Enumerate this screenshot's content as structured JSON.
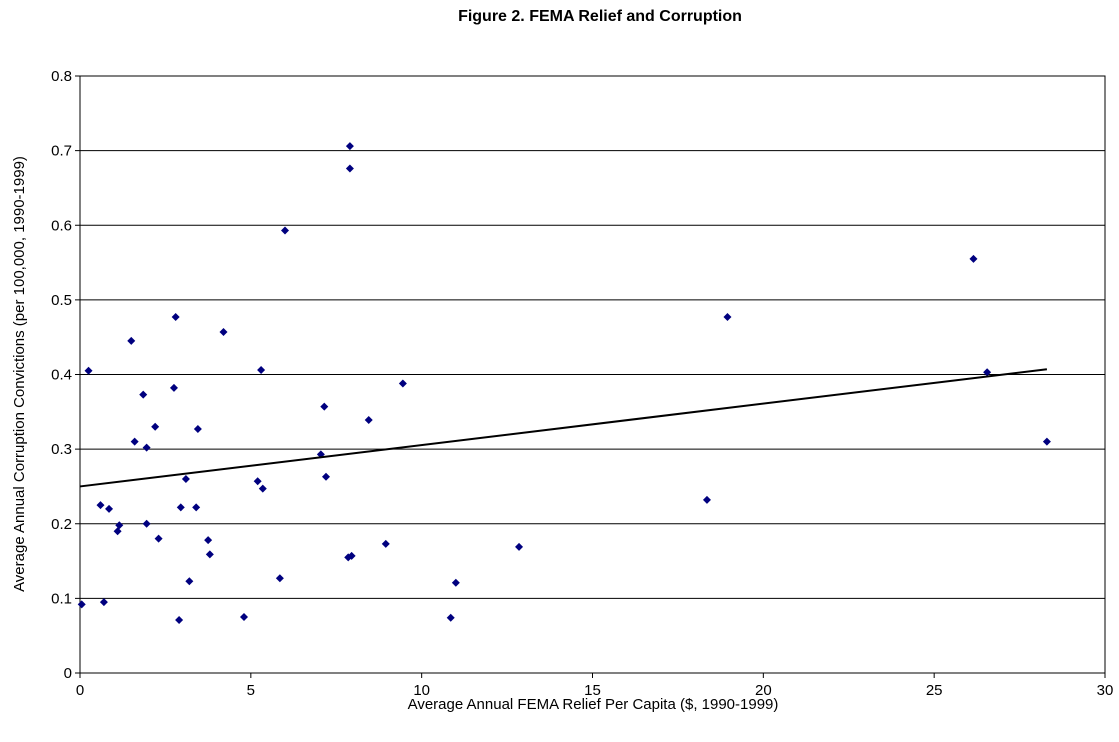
{
  "chart_data": {
    "type": "scatter",
    "title": "Figure 2. FEMA Relief and Corruption",
    "xlabel": "Average Annual FEMA Relief Per Capita ($, 1990-1999)",
    "ylabel": "Average Annual Corruption Convictions (per 100,000, 1990-1999)",
    "xlim": [
      0,
      30
    ],
    "ylim": [
      0,
      0.8
    ],
    "x_ticks": [
      "0",
      "5",
      "10",
      "15",
      "20",
      "25",
      "30"
    ],
    "y_ticks": [
      "0",
      "0.1",
      "0.2",
      "0.3",
      "0.4",
      "0.5",
      "0.6",
      "0.7",
      "0.8"
    ],
    "grid": "horizontal",
    "marker_color": "#00007f",
    "points": [
      [
        0.05,
        0.092
      ],
      [
        0.25,
        0.405
      ],
      [
        0.6,
        0.225
      ],
      [
        0.7,
        0.095
      ],
      [
        0.85,
        0.22
      ],
      [
        1.1,
        0.19
      ],
      [
        1.15,
        0.198
      ],
      [
        1.5,
        0.445
      ],
      [
        1.6,
        0.31
      ],
      [
        1.85,
        0.373
      ],
      [
        1.95,
        0.302
      ],
      [
        1.95,
        0.2
      ],
      [
        2.2,
        0.33
      ],
      [
        2.3,
        0.18
      ],
      [
        2.75,
        0.382
      ],
      [
        2.8,
        0.477
      ],
      [
        2.9,
        0.071
      ],
      [
        2.95,
        0.222
      ],
      [
        3.1,
        0.26
      ],
      [
        3.2,
        0.123
      ],
      [
        3.4,
        0.222
      ],
      [
        3.45,
        0.327
      ],
      [
        3.75,
        0.178
      ],
      [
        3.8,
        0.159
      ],
      [
        4.2,
        0.457
      ],
      [
        4.8,
        0.075
      ],
      [
        5.2,
        0.257
      ],
      [
        5.3,
        0.406
      ],
      [
        5.35,
        0.247
      ],
      [
        5.85,
        0.127
      ],
      [
        6.0,
        0.593
      ],
      [
        7.05,
        0.293
      ],
      [
        7.15,
        0.357
      ],
      [
        7.2,
        0.263
      ],
      [
        7.85,
        0.155
      ],
      [
        7.9,
        0.706
      ],
      [
        7.9,
        0.676
      ],
      [
        7.95,
        0.157
      ],
      [
        8.45,
        0.339
      ],
      [
        8.95,
        0.173
      ],
      [
        9.45,
        0.388
      ],
      [
        10.85,
        0.074
      ],
      [
        11.0,
        0.121
      ],
      [
        12.85,
        0.169
      ],
      [
        18.35,
        0.232
      ],
      [
        18.95,
        0.477
      ],
      [
        26.15,
        0.555
      ],
      [
        26.55,
        0.403
      ],
      [
        28.3,
        0.31
      ]
    ],
    "trendline": {
      "x": [
        0,
        28.3
      ],
      "y": [
        0.25,
        0.407
      ]
    }
  }
}
